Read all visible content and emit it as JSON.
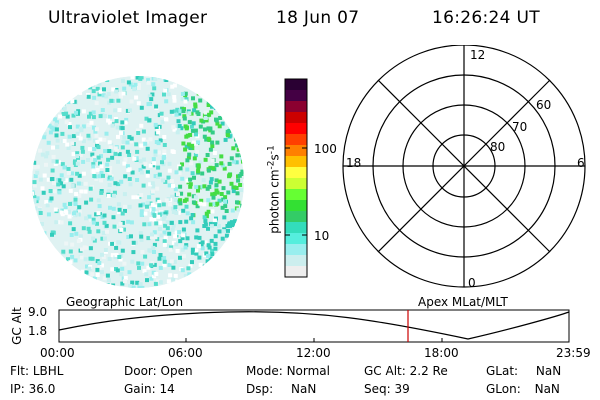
{
  "header": {
    "title": "Ultraviolet Imager",
    "date": "18 Jun 07",
    "time": "16:26:24 UT"
  },
  "colorbar": {
    "label": "photon cm",
    "label_sup1": "-2",
    "label_mid": "s",
    "label_sup2": "-1",
    "ticks": [
      "100",
      "10"
    ],
    "colors": [
      "#2a0033",
      "#440044",
      "#8b0030",
      "#cc0000",
      "#ff0000",
      "#ff4000",
      "#ff8000",
      "#ffc000",
      "#ffff40",
      "#ccff33",
      "#66ff33",
      "#33e033",
      "#33cc66",
      "#33ddbb",
      "#55eedd",
      "#99eeee",
      "#cceeee",
      "#eeeeee"
    ]
  },
  "polar": {
    "labels": {
      "top": "12",
      "bottom": "0",
      "left": "18",
      "right": "6"
    },
    "rings": [
      "60",
      "70",
      "80"
    ]
  },
  "timeline": {
    "ylabel": "GC Alt",
    "yticks": [
      "9.0",
      "1.8"
    ],
    "left_caption": "Geographic Lat/Lon",
    "right_caption": "Apex MLat/MLT",
    "xticks": [
      "00:00",
      "06:00",
      "12:00",
      "18:00",
      "23:59"
    ],
    "marker_color": "#cc0000"
  },
  "info": {
    "row1": [
      {
        "label": "Flt:",
        "value": "LBHL"
      },
      {
        "label": "Door:",
        "value": "Open"
      },
      {
        "label": "Mode:",
        "value": "Normal"
      },
      {
        "label": "GC Alt:",
        "value": "2.2 Re"
      },
      {
        "label": "GLat:",
        "value": "NaN"
      }
    ],
    "row2": [
      {
        "label": "IP:",
        "value": "36.0"
      },
      {
        "label": "Gain:",
        "value": "14"
      },
      {
        "label": "Dsp:",
        "value": "NaN"
      },
      {
        "label": "Seq:",
        "value": "39"
      },
      {
        "label": "GLon:",
        "value": "NaN"
      }
    ]
  }
}
